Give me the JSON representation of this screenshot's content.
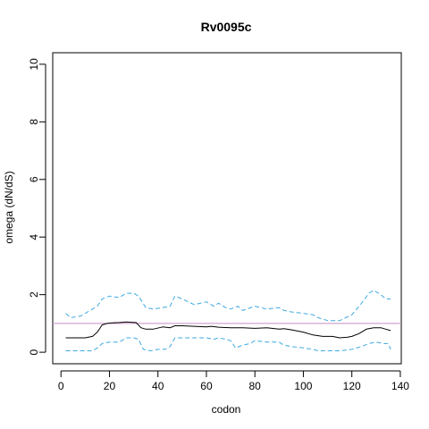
{
  "chart_data": {
    "type": "line",
    "title": "Rv0095c",
    "xlabel": "codon",
    "ylabel": "omega (dN/dS)",
    "xlim": [
      -3.4,
      140.4
    ],
    "ylim": [
      -0.4,
      10.4
    ],
    "xticks": [
      0,
      20,
      40,
      60,
      80,
      100,
      120,
      140
    ],
    "yticks": [
      0,
      2,
      4,
      6,
      8,
      10
    ],
    "grid": false,
    "legend": "none",
    "reference_line": {
      "y": 1,
      "color": "#c48fc4"
    },
    "series": [
      {
        "role": "estimate",
        "color": "#000000",
        "style": "solid",
        "x": [
          2,
          5,
          10,
          13,
          15,
          17,
          19,
          21,
          24,
          27,
          31,
          33,
          35,
          38,
          42,
          45,
          47,
          50,
          55,
          60,
          62,
          65,
          70,
          75,
          80,
          85,
          90,
          92,
          95,
          100,
          104,
          108,
          112,
          115,
          118,
          120,
          123,
          126,
          129,
          132,
          134,
          136
        ],
        "values": [
          0.5,
          0.5,
          0.5,
          0.55,
          0.7,
          0.95,
          1.0,
          1.02,
          1.03,
          1.05,
          1.03,
          0.85,
          0.8,
          0.8,
          0.88,
          0.85,
          0.92,
          0.92,
          0.9,
          0.88,
          0.9,
          0.87,
          0.85,
          0.85,
          0.83,
          0.85,
          0.8,
          0.82,
          0.78,
          0.7,
          0.6,
          0.55,
          0.55,
          0.5,
          0.52,
          0.55,
          0.65,
          0.8,
          0.85,
          0.85,
          0.8,
          0.75
        ]
      },
      {
        "role": "upper",
        "color": "#3fa9e0",
        "style": "dashed",
        "x": [
          2,
          4,
          8,
          12,
          15,
          17,
          20,
          24,
          27,
          30,
          32,
          35,
          38,
          42,
          45,
          47,
          50,
          55,
          60,
          63,
          65,
          68,
          70,
          73,
          75,
          80,
          85,
          90,
          92,
          95,
          100,
          104,
          106,
          110,
          115,
          120,
          124,
          127,
          129,
          132,
          134,
          136
        ],
        "values": [
          1.35,
          1.2,
          1.25,
          1.45,
          1.6,
          1.85,
          1.95,
          1.9,
          2.05,
          2.05,
          1.95,
          1.55,
          1.5,
          1.55,
          1.6,
          1.95,
          1.85,
          1.65,
          1.75,
          1.6,
          1.7,
          1.55,
          1.5,
          1.6,
          1.45,
          1.6,
          1.5,
          1.55,
          1.45,
          1.4,
          1.35,
          1.3,
          1.2,
          1.1,
          1.1,
          1.3,
          1.7,
          2.05,
          2.15,
          2.0,
          1.85,
          1.85
        ]
      },
      {
        "role": "lower",
        "color": "#3fa9e0",
        "style": "dashed",
        "x": [
          2,
          5,
          10,
          13,
          15,
          17,
          20,
          24,
          27,
          30,
          32,
          34,
          37,
          40,
          43,
          45,
          47,
          50,
          55,
          60,
          63,
          65,
          68,
          70,
          72,
          75,
          78,
          80,
          85,
          90,
          92,
          95,
          100,
          104,
          106,
          110,
          115,
          120,
          124,
          127,
          130,
          133,
          135,
          136
        ],
        "values": [
          0.05,
          0.05,
          0.05,
          0.05,
          0.15,
          0.3,
          0.35,
          0.35,
          0.5,
          0.5,
          0.45,
          0.1,
          0.05,
          0.1,
          0.1,
          0.2,
          0.5,
          0.5,
          0.5,
          0.5,
          0.45,
          0.5,
          0.45,
          0.4,
          0.15,
          0.25,
          0.3,
          0.4,
          0.35,
          0.35,
          0.25,
          0.2,
          0.15,
          0.1,
          0.05,
          0.05,
          0.05,
          0.1,
          0.2,
          0.3,
          0.35,
          0.3,
          0.3,
          0.1
        ]
      }
    ]
  }
}
